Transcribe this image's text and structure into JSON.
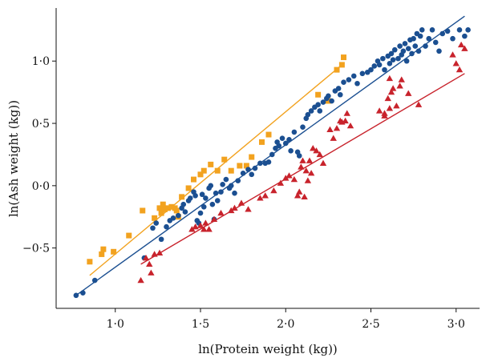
{
  "chart_data": {
    "type": "scatter",
    "title": "",
    "xlabel": "ln(Protein weight (kg))",
    "ylabel": "ln(Ash weight (kg))",
    "xlim": [
      0.7,
      3.1
    ],
    "ylim": [
      -0.92,
      1.4
    ],
    "xticks": [
      1.0,
      1.5,
      2.0,
      2.5,
      3.0
    ],
    "xtick_labels": [
      "1·0",
      "1·5",
      "2·0",
      "2·5",
      "3·0"
    ],
    "yticks": [
      -0.5,
      0.0,
      0.5,
      1.0
    ],
    "ytick_labels": [
      "−0·5",
      "0·0",
      "0·5",
      "1·0"
    ],
    "grid": false,
    "legend": "none",
    "series": [
      {
        "marker": "square",
        "color": "#F2A21F",
        "points": [
          [
            0.85,
            -0.61
          ],
          [
            0.92,
            -0.55
          ],
          [
            0.93,
            -0.51
          ],
          [
            0.99,
            -0.53
          ],
          [
            1.08,
            -0.4
          ],
          [
            1.16,
            -0.2
          ],
          [
            1.23,
            -0.26
          ],
          [
            1.26,
            -0.18
          ],
          [
            1.27,
            -0.22
          ],
          [
            1.28,
            -0.15
          ],
          [
            1.29,
            -0.19
          ],
          [
            1.31,
            -0.18
          ],
          [
            1.33,
            -0.17
          ],
          [
            1.35,
            -0.18
          ],
          [
            1.36,
            -0.2
          ],
          [
            1.37,
            -0.25
          ],
          [
            1.39,
            -0.09
          ],
          [
            1.43,
            -0.02
          ],
          [
            1.46,
            0.05
          ],
          [
            1.5,
            0.09
          ],
          [
            1.52,
            0.12
          ],
          [
            1.56,
            0.17
          ],
          [
            1.6,
            0.12
          ],
          [
            1.64,
            0.21
          ],
          [
            1.68,
            0.12
          ],
          [
            1.73,
            0.16
          ],
          [
            1.77,
            0.16
          ],
          [
            1.8,
            0.23
          ],
          [
            1.86,
            0.35
          ],
          [
            1.9,
            0.41
          ],
          [
            2.19,
            0.73
          ],
          [
            2.25,
            0.68
          ],
          [
            2.3,
            0.93
          ],
          [
            2.33,
            0.97
          ],
          [
            2.34,
            1.03
          ]
        ],
        "fit": {
          "x": [
            0.85,
            2.33
          ],
          "y": [
            -0.72,
            0.97
          ]
        }
      },
      {
        "marker": "circle",
        "color": "#1B4F91",
        "points": [
          [
            0.77,
            -0.88
          ],
          [
            0.81,
            -0.86
          ],
          [
            0.88,
            -0.76
          ],
          [
            1.17,
            -0.58
          ],
          [
            1.22,
            -0.34
          ],
          [
            1.24,
            -0.3
          ],
          [
            1.27,
            -0.43
          ],
          [
            1.3,
            -0.33
          ],
          [
            1.32,
            -0.28
          ],
          [
            1.34,
            -0.26
          ],
          [
            1.37,
            -0.24
          ],
          [
            1.39,
            -0.18
          ],
          [
            1.4,
            -0.15
          ],
          [
            1.41,
            -0.21
          ],
          [
            1.43,
            -0.12
          ],
          [
            1.44,
            -0.1
          ],
          [
            1.46,
            -0.05
          ],
          [
            1.47,
            -0.08
          ],
          [
            1.48,
            -0.28
          ],
          [
            1.49,
            -0.3
          ],
          [
            1.5,
            -0.22
          ],
          [
            1.51,
            -0.07
          ],
          [
            1.52,
            -0.17
          ],
          [
            1.53,
            -0.1
          ],
          [
            1.55,
            -0.02
          ],
          [
            1.56,
            0.0
          ],
          [
            1.57,
            -0.15
          ],
          [
            1.58,
            -0.27
          ],
          [
            1.59,
            -0.06
          ],
          [
            1.6,
            -0.12
          ],
          [
            1.62,
            -0.05
          ],
          [
            1.63,
            0.01
          ],
          [
            1.65,
            0.05
          ],
          [
            1.67,
            -0.02
          ],
          [
            1.68,
            0.0
          ],
          [
            1.7,
            -0.06
          ],
          [
            1.72,
            0.04
          ],
          [
            1.75,
            0.1
          ],
          [
            1.78,
            0.13
          ],
          [
            1.8,
            0.09
          ],
          [
            1.82,
            0.14
          ],
          [
            1.85,
            0.18
          ],
          [
            1.88,
            0.18
          ],
          [
            1.9,
            0.19
          ],
          [
            1.92,
            0.25
          ],
          [
            1.94,
            0.3
          ],
          [
            1.95,
            0.35
          ],
          [
            1.96,
            0.32
          ],
          [
            1.98,
            0.38
          ],
          [
            2.0,
            0.34
          ],
          [
            2.02,
            0.37
          ],
          [
            2.03,
            0.28
          ],
          [
            2.05,
            0.43
          ],
          [
            2.07,
            0.27
          ],
          [
            2.08,
            0.24
          ],
          [
            2.1,
            0.47
          ],
          [
            2.12,
            0.54
          ],
          [
            2.13,
            0.57
          ],
          [
            2.15,
            0.6
          ],
          [
            2.17,
            0.63
          ],
          [
            2.19,
            0.65
          ],
          [
            2.2,
            0.6
          ],
          [
            2.22,
            0.67
          ],
          [
            2.24,
            0.7
          ],
          [
            2.25,
            0.72
          ],
          [
            2.27,
            0.68
          ],
          [
            2.29,
            0.76
          ],
          [
            2.31,
            0.78
          ],
          [
            2.32,
            0.73
          ],
          [
            2.34,
            0.83
          ],
          [
            2.37,
            0.85
          ],
          [
            2.4,
            0.88
          ],
          [
            2.42,
            0.82
          ],
          [
            2.45,
            0.9
          ],
          [
            2.48,
            0.91
          ],
          [
            2.5,
            0.93
          ],
          [
            2.52,
            0.96
          ],
          [
            2.54,
            1.0
          ],
          [
            2.55,
            0.97
          ],
          [
            2.57,
            1.02
          ],
          [
            2.58,
            0.93
          ],
          [
            2.6,
            1.04
          ],
          [
            2.61,
            0.98
          ],
          [
            2.62,
            1.06
          ],
          [
            2.63,
            1.01
          ],
          [
            2.64,
            1.09
          ],
          [
            2.66,
            1.02
          ],
          [
            2.67,
            1.12
          ],
          [
            2.68,
            1.05
          ],
          [
            2.69,
            1.08
          ],
          [
            2.7,
            1.14
          ],
          [
            2.71,
            1.0
          ],
          [
            2.72,
            1.1
          ],
          [
            2.73,
            1.17
          ],
          [
            2.74,
            1.06
          ],
          [
            2.75,
            1.18
          ],
          [
            2.76,
            1.12
          ],
          [
            2.77,
            1.22
          ],
          [
            2.78,
            1.08
          ],
          [
            2.79,
            1.2
          ],
          [
            2.8,
            1.25
          ],
          [
            2.82,
            1.12
          ],
          [
            2.84,
            1.18
          ],
          [
            2.86,
            1.25
          ],
          [
            2.88,
            1.15
          ],
          [
            2.9,
            1.08
          ],
          [
            2.92,
            1.22
          ],
          [
            2.95,
            1.24
          ],
          [
            2.98,
            1.18
          ],
          [
            3.02,
            1.25
          ],
          [
            3.05,
            1.2
          ],
          [
            3.07,
            1.25
          ]
        ],
        "fit": {
          "x": [
            0.77,
            3.05
          ],
          "y": [
            -0.88,
            1.36
          ]
        }
      },
      {
        "marker": "triangle",
        "color": "#C8232C",
        "points": [
          [
            1.15,
            -0.76
          ],
          [
            1.18,
            -0.58
          ],
          [
            1.2,
            -0.63
          ],
          [
            1.21,
            -0.7
          ],
          [
            1.23,
            -0.55
          ],
          [
            1.26,
            -0.54
          ],
          [
            1.45,
            -0.35
          ],
          [
            1.47,
            -0.33
          ],
          [
            1.5,
            -0.32
          ],
          [
            1.52,
            -0.35
          ],
          [
            1.53,
            -0.3
          ],
          [
            1.55,
            -0.35
          ],
          [
            1.58,
            -0.27
          ],
          [
            1.62,
            -0.22
          ],
          [
            1.68,
            -0.2
          ],
          [
            1.7,
            -0.18
          ],
          [
            1.74,
            -0.14
          ],
          [
            1.78,
            -0.19
          ],
          [
            1.85,
            -0.1
          ],
          [
            1.88,
            -0.08
          ],
          [
            1.93,
            -0.04
          ],
          [
            1.97,
            0.02
          ],
          [
            2.0,
            0.06
          ],
          [
            2.02,
            0.08
          ],
          [
            2.05,
            0.05
          ],
          [
            2.07,
            -0.08
          ],
          [
            2.08,
            -0.05
          ],
          [
            2.09,
            0.15
          ],
          [
            2.1,
            0.2
          ],
          [
            2.11,
            -0.09
          ],
          [
            2.12,
            0.12
          ],
          [
            2.13,
            0.04
          ],
          [
            2.14,
            0.2
          ],
          [
            2.15,
            0.1
          ],
          [
            2.16,
            0.3
          ],
          [
            2.18,
            0.28
          ],
          [
            2.2,
            0.25
          ],
          [
            2.22,
            0.18
          ],
          [
            2.26,
            0.45
          ],
          [
            2.28,
            0.38
          ],
          [
            2.3,
            0.46
          ],
          [
            2.32,
            0.52
          ],
          [
            2.33,
            0.51
          ],
          [
            2.35,
            0.52
          ],
          [
            2.36,
            0.58
          ],
          [
            2.38,
            0.48
          ],
          [
            2.55,
            0.6
          ],
          [
            2.58,
            0.58
          ],
          [
            2.6,
            0.7
          ],
          [
            2.61,
            0.62
          ],
          [
            2.62,
            0.75
          ],
          [
            2.63,
            0.78
          ],
          [
            2.65,
            0.64
          ],
          [
            2.67,
            0.8
          ],
          [
            2.68,
            0.85
          ],
          [
            2.72,
            0.74
          ],
          [
            2.58,
            0.56
          ],
          [
            2.61,
            0.86
          ],
          [
            2.78,
            0.65
          ],
          [
            2.98,
            1.05
          ],
          [
            3.0,
            0.98
          ],
          [
            3.02,
            0.93
          ],
          [
            3.03,
            1.13
          ],
          [
            3.05,
            1.1
          ]
        ],
        "fit": {
          "x": [
            1.15,
            3.05
          ],
          "y": [
            -0.63,
            0.9
          ]
        }
      }
    ]
  }
}
